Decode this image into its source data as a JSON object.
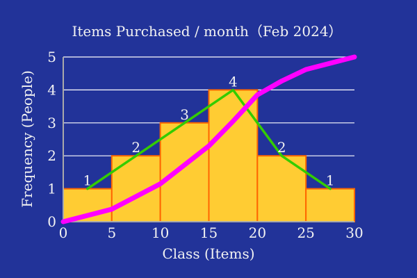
{
  "chart_data": {
    "type": "bar",
    "title": "Items Purchased / month（Feb 2024）",
    "xlabel": "Class (Items)",
    "ylabel": "Frequency (People)",
    "x_ticks": [
      "0",
      "5",
      "10",
      "15",
      "20",
      "25",
      "30"
    ],
    "y_ticks": [
      "0",
      "1",
      "2",
      "3",
      "4",
      "5"
    ],
    "xlim": [
      0,
      30
    ],
    "ylim": [
      0,
      5
    ],
    "grid": true,
    "bins": [
      {
        "x0": 0,
        "x1": 5,
        "value": 1,
        "label": "1"
      },
      {
        "x0": 5,
        "x1": 10,
        "value": 2,
        "label": "2"
      },
      {
        "x0": 10,
        "x1": 15,
        "value": 3,
        "label": "3"
      },
      {
        "x0": 15,
        "x1": 20,
        "value": 4,
        "label": "4"
      },
      {
        "x0": 20,
        "x1": 25,
        "value": 2,
        "label": "2"
      },
      {
        "x0": 25,
        "x1": 30,
        "value": 1,
        "label": "1"
      }
    ],
    "series": [
      {
        "type": "line",
        "role": "frequency-polygon",
        "x": [
          2.5,
          7.5,
          12.5,
          17.5,
          22.5,
          27.5
        ],
        "values": [
          1,
          2,
          3,
          4,
          2,
          1
        ]
      },
      {
        "type": "line",
        "role": "cumulative-curve",
        "x": [
          0,
          5,
          10,
          15,
          17.5,
          20,
          22.5,
          25,
          30
        ],
        "values": [
          0,
          0.38,
          1.15,
          2.3,
          3.05,
          3.85,
          4.27,
          4.62,
          5
        ]
      }
    ],
    "colors": {
      "background": "#223399",
      "bar_fill": "#ffcc33",
      "bar_edge": "#ff6600",
      "grid": "#ffffff",
      "axis": "#aaaaaa",
      "text": "#f2f2f2",
      "polygon_line": "#33cc00",
      "cumulative_line": "#ff00ff"
    }
  }
}
